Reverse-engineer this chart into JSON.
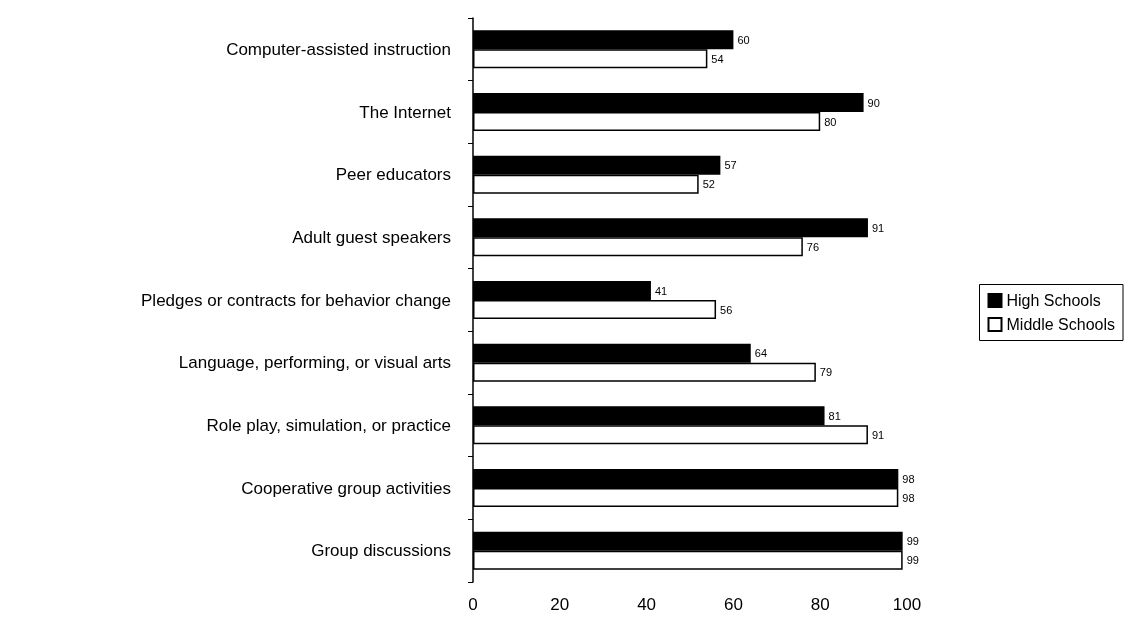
{
  "chart_data": {
    "type": "bar",
    "orientation": "horizontal",
    "categories": [
      "Computer-assisted instruction",
      "The Internet",
      "Peer educators",
      "Adult guest speakers",
      "Pledges or contracts for behavior change",
      "Language, performing, or visual arts",
      "Role play, simulation, or practice",
      "Cooperative group activities",
      "Group discussions"
    ],
    "series": [
      {
        "name": "High Schools",
        "color": "#000000",
        "values": [
          60,
          90,
          57,
          91,
          41,
          64,
          81,
          98,
          99
        ]
      },
      {
        "name": "Middle Schools",
        "color": "#ffffff",
        "values": [
          54,
          80,
          52,
          76,
          56,
          79,
          91,
          98,
          99
        ]
      }
    ],
    "xlim": [
      0,
      100
    ],
    "xticks": [
      0,
      20,
      40,
      60,
      80,
      100
    ],
    "grid": false,
    "legend": "right",
    "data_labels": true
  }
}
